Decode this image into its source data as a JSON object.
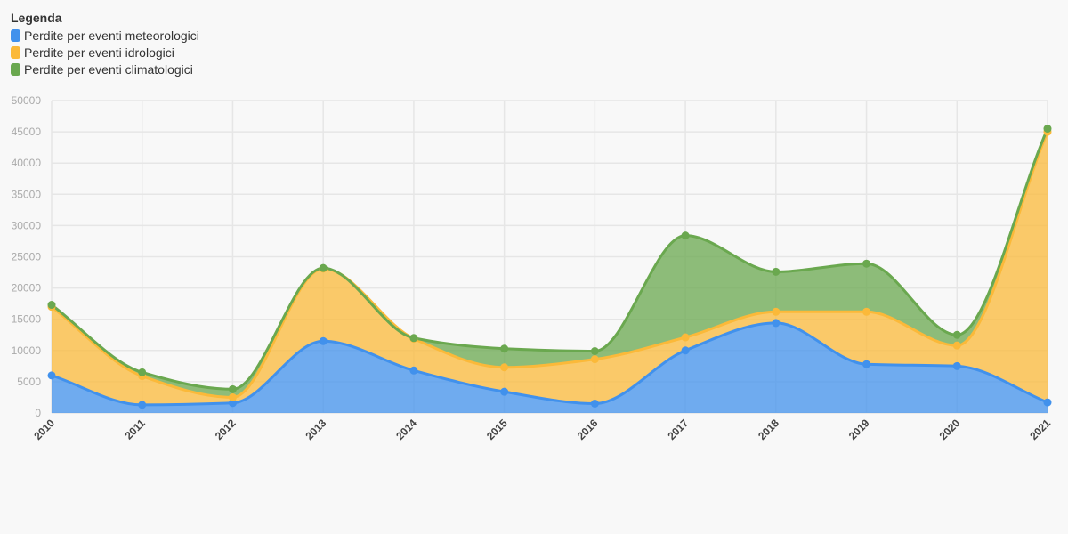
{
  "legend": {
    "title": "Legenda"
  },
  "chart_data": {
    "type": "area",
    "stacked": true,
    "x": [
      "2010",
      "2011",
      "2012",
      "2013",
      "2014",
      "2015",
      "2016",
      "2017",
      "2018",
      "2019",
      "2020",
      "2021"
    ],
    "series": [
      {
        "name": "Perdite per eventi meteorologici",
        "color": "#4191ec",
        "values": [
          6000,
          1300,
          1600,
          11500,
          6800,
          3400,
          1500,
          10000,
          14400,
          7800,
          7500,
          1700
        ]
      },
      {
        "name": "Perdite per eventi idrologici",
        "color": "#fbb939",
        "values": [
          11000,
          4600,
          900,
          11600,
          5100,
          3900,
          7100,
          2100,
          1800,
          8400,
          3300,
          43300
        ]
      },
      {
        "name": "Perdite per eventi climatologici",
        "color": "#6aa84f",
        "values": [
          300,
          600,
          1300,
          100,
          100,
          3000,
          1300,
          16300,
          6400,
          7700,
          1700,
          500
        ]
      }
    ],
    "ylim": [
      0,
      50000
    ],
    "yticks": [
      0,
      5000,
      10000,
      15000,
      20000,
      25000,
      30000,
      35000,
      40000,
      45000,
      50000
    ],
    "grid": true,
    "legend_position": "top-left",
    "xlabel": "",
    "ylabel": ""
  }
}
